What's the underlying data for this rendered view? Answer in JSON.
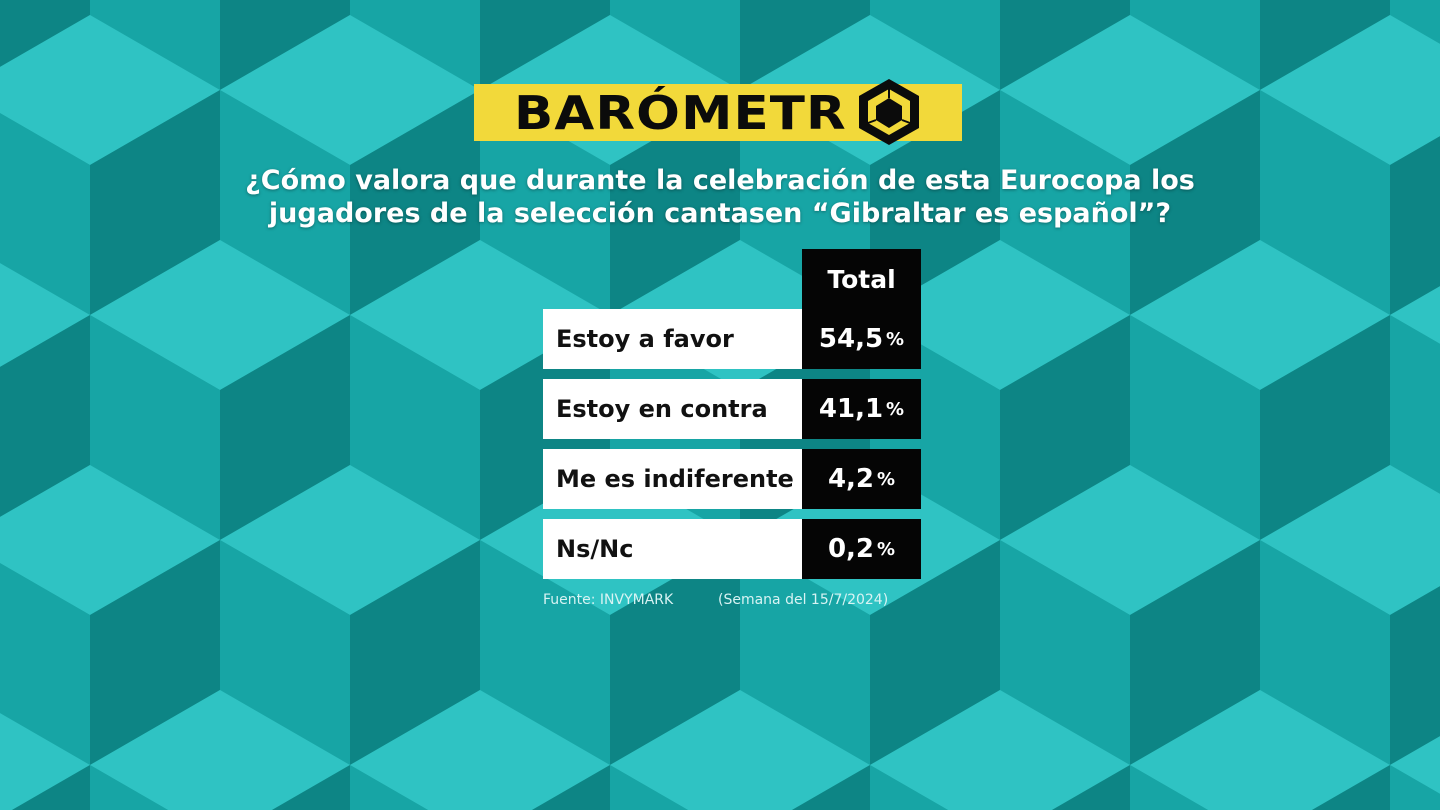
{
  "logo": {
    "text": "BARÓMETR",
    "icon": "hexagon-cube-icon"
  },
  "question": "¿Cómo valora que durante la celebración de esta Eurocopa los jugadores de la selección cantasen “Gibraltar es español”?",
  "colors": {
    "background": "#15a3a3",
    "logo": "#f2d93a",
    "value_cell": "#050505",
    "label_cell": "#ffffff"
  },
  "chart_data": {
    "type": "table",
    "columns": [
      "Total"
    ],
    "rows": [
      {
        "label": "Estoy a favor",
        "value": "54,5",
        "unit": "%"
      },
      {
        "label": "Estoy en contra",
        "value": "41,1",
        "unit": "%"
      },
      {
        "label": "Me es indiferente",
        "value": "4,2",
        "unit": "%"
      },
      {
        "label": "Ns/Nc",
        "value": "0,2",
        "unit": "%"
      }
    ]
  },
  "source": "Fuente: INVYMARK",
  "date_note": "(Semana del 15/7/2024)"
}
